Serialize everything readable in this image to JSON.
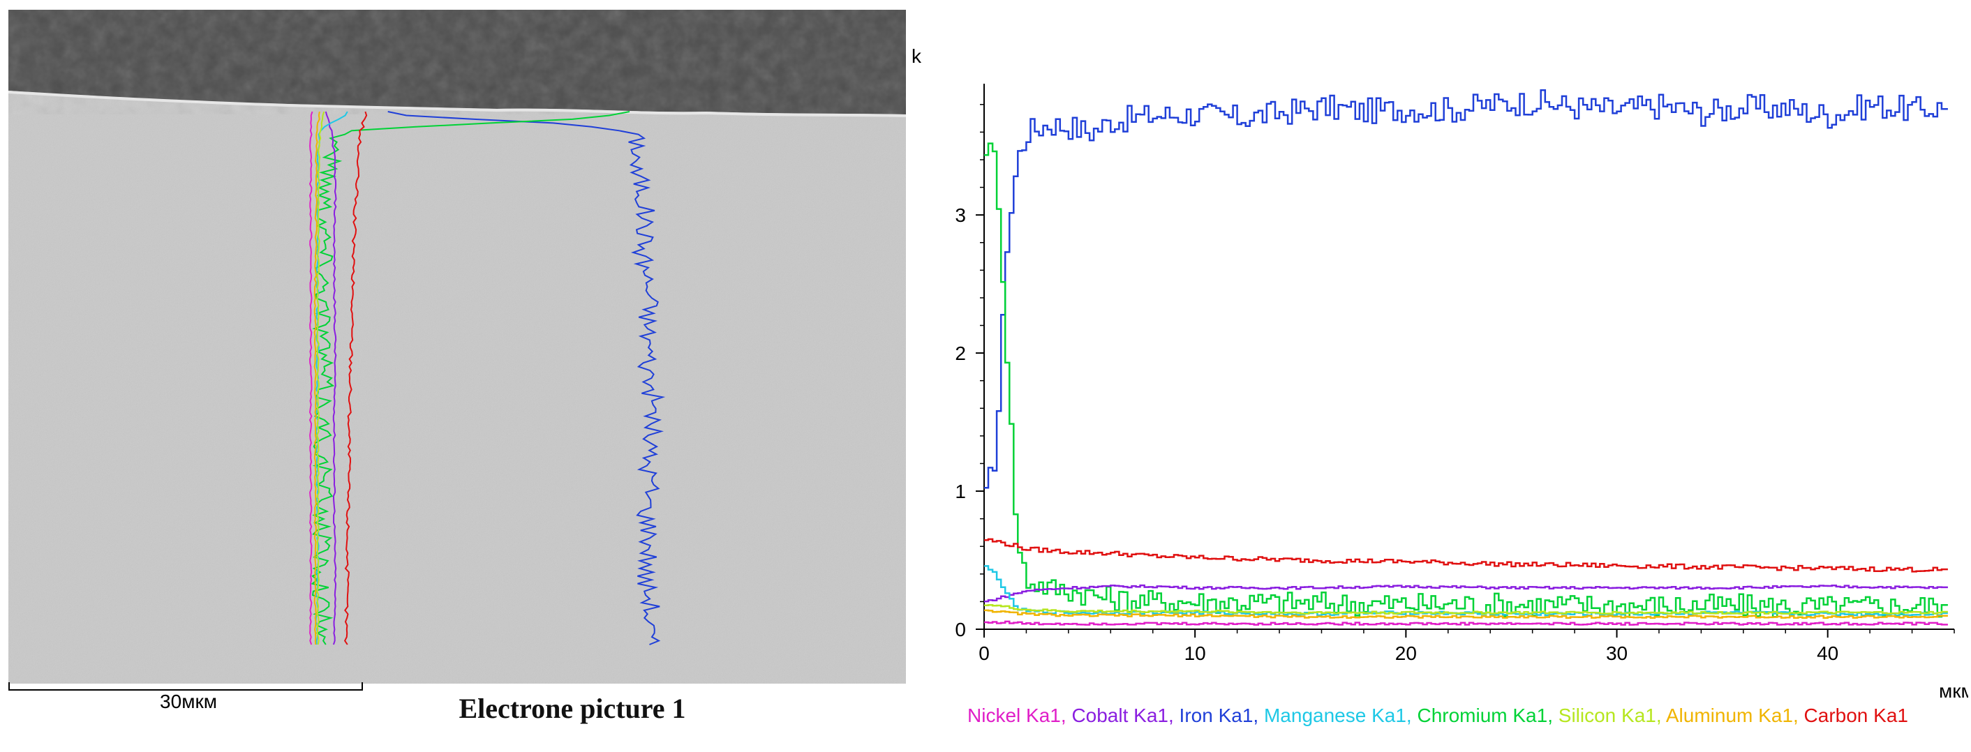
{
  "micrograph": {
    "scale_label": "30мкм",
    "caption": "Electrone picture 1"
  },
  "chart_data": {
    "type": "line",
    "title": "",
    "ylabel": "k",
    "xlabel": "мкм",
    "xlim": [
      0,
      46
    ],
    "ylim": [
      0,
      3.9
    ],
    "x_ticks": [
      0,
      10,
      20,
      30,
      40
    ],
    "y_ticks": [
      0,
      1,
      2,
      3
    ],
    "grid": false,
    "legend": "bottom",
    "series": [
      {
        "name": "Iron Ka1",
        "color": "#1f3fd8",
        "x": [
          0,
          0.5,
          1,
          1.5,
          2,
          3,
          4,
          5,
          6,
          8,
          10,
          12,
          14,
          16,
          18,
          20,
          22,
          24,
          26,
          28,
          30,
          32,
          34,
          36,
          38,
          40,
          42,
          44,
          45.5
        ],
        "y": [
          0.95,
          1.3,
          2.8,
          3.4,
          3.6,
          3.66,
          3.64,
          3.6,
          3.68,
          3.72,
          3.73,
          3.7,
          3.74,
          3.78,
          3.75,
          3.77,
          3.76,
          3.8,
          3.82,
          3.78,
          3.76,
          3.79,
          3.74,
          3.78,
          3.77,
          3.72,
          3.8,
          3.76,
          3.78
        ]
      },
      {
        "name": "Chromium Ka1",
        "color": "#00d236",
        "x": [
          0,
          0.5,
          1,
          1.5,
          2,
          3,
          4,
          6,
          8,
          10,
          15,
          20,
          25,
          30,
          35,
          40,
          45.5
        ],
        "y": [
          3.5,
          3.4,
          2.0,
          0.6,
          0.35,
          0.3,
          0.28,
          0.22,
          0.2,
          0.2,
          0.19,
          0.18,
          0.18,
          0.17,
          0.17,
          0.16,
          0.17
        ]
      },
      {
        "name": "Carbon Ka1",
        "color": "#e01010",
        "x": [
          0,
          1,
          2,
          4,
          6,
          8,
          10,
          15,
          20,
          25,
          30,
          35,
          40,
          45.5
        ],
        "y": [
          0.65,
          0.62,
          0.58,
          0.56,
          0.55,
          0.53,
          0.52,
          0.5,
          0.49,
          0.47,
          0.46,
          0.45,
          0.44,
          0.43
        ]
      },
      {
        "name": "Cobalt Ka1",
        "color": "#8a1ee0",
        "x": [
          0,
          1,
          2,
          4,
          6,
          8,
          10,
          15,
          20,
          25,
          30,
          35,
          40,
          45.5
        ],
        "y": [
          0.2,
          0.24,
          0.28,
          0.3,
          0.31,
          0.31,
          0.3,
          0.3,
          0.31,
          0.3,
          0.3,
          0.3,
          0.31,
          0.3
        ]
      },
      {
        "name": "Manganese Ka1",
        "color": "#1ec8e6",
        "x": [
          0,
          0.5,
          1,
          1.5,
          2,
          4,
          6,
          10,
          15,
          20,
          25,
          30,
          35,
          40,
          45.5
        ],
        "y": [
          0.45,
          0.4,
          0.25,
          0.15,
          0.13,
          0.12,
          0.12,
          0.12,
          0.11,
          0.12,
          0.11,
          0.11,
          0.12,
          0.11,
          0.11
        ]
      },
      {
        "name": "Silicon Ka1",
        "color": "#b6e61e",
        "x": [
          0,
          1,
          2,
          4,
          6,
          10,
          15,
          20,
          25,
          30,
          35,
          40,
          45.5
        ],
        "y": [
          0.18,
          0.16,
          0.14,
          0.13,
          0.13,
          0.13,
          0.12,
          0.12,
          0.12,
          0.12,
          0.12,
          0.12,
          0.12
        ]
      },
      {
        "name": "Aluminum Ka1",
        "color": "#f0b400",
        "x": [
          0,
          1,
          2,
          4,
          6,
          10,
          15,
          20,
          25,
          30,
          35,
          40,
          45.5
        ],
        "y": [
          0.14,
          0.12,
          0.11,
          0.1,
          0.1,
          0.1,
          0.09,
          0.09,
          0.09,
          0.09,
          0.09,
          0.09,
          0.09
        ]
      },
      {
        "name": "Nickel Ka1",
        "color": "#e01ec8",
        "x": [
          0,
          1,
          2,
          4,
          6,
          10,
          15,
          20,
          25,
          30,
          35,
          40,
          45.5
        ],
        "y": [
          0.05,
          0.05,
          0.04,
          0.04,
          0.04,
          0.04,
          0.04,
          0.04,
          0.04,
          0.04,
          0.04,
          0.04,
          0.04
        ]
      }
    ],
    "legend_order": [
      "Nickel Ka1",
      "Cobalt Ka1",
      "Iron Ka1",
      "Manganese Ka1",
      "Chromium Ka1",
      "Silicon Ka1",
      "Aluminum Ka1",
      "Carbon Ka1"
    ]
  }
}
